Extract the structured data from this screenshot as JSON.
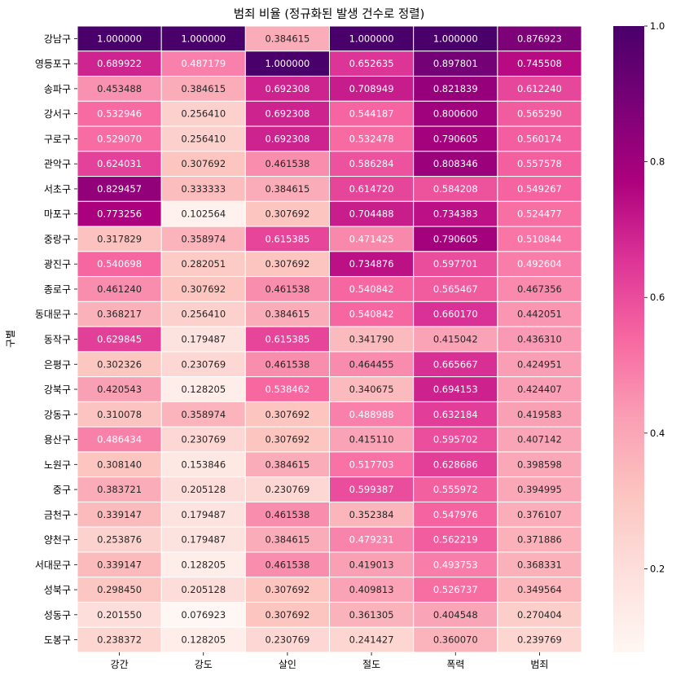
{
  "chart_data": {
    "type": "heatmap",
    "title": "범죄 비율 (정규화된 발생 건수로 정렬)",
    "xlabel": "",
    "ylabel": "구별",
    "columns": [
      "강간",
      "강도",
      "살인",
      "절도",
      "폭력",
      "범죄"
    ],
    "rows": [
      "강남구",
      "영등포구",
      "송파구",
      "강서구",
      "구로구",
      "관악구",
      "서초구",
      "마포구",
      "중랑구",
      "광진구",
      "종로구",
      "동대문구",
      "동작구",
      "은평구",
      "강북구",
      "강동구",
      "용산구",
      "노원구",
      "중구",
      "금천구",
      "양천구",
      "서대문구",
      "성북구",
      "성동구",
      "도봉구"
    ],
    "values": [
      [
        "1.000000",
        "1.000000",
        "0.384615",
        "1.000000",
        "1.000000",
        "0.876923"
      ],
      [
        "0.689922",
        "0.487179",
        "1.000000",
        "0.652635",
        "0.897801",
        "0.745508"
      ],
      [
        "0.453488",
        "0.384615",
        "0.692308",
        "0.708949",
        "0.821839",
        "0.612240"
      ],
      [
        "0.532946",
        "0.256410",
        "0.692308",
        "0.544187",
        "0.800600",
        "0.565290"
      ],
      [
        "0.529070",
        "0.256410",
        "0.692308",
        "0.532478",
        "0.790605",
        "0.560174"
      ],
      [
        "0.624031",
        "0.307692",
        "0.461538",
        "0.586284",
        "0.808346",
        "0.557578"
      ],
      [
        "0.829457",
        "0.333333",
        "0.384615",
        "0.614720",
        "0.584208",
        "0.549267"
      ],
      [
        "0.773256",
        "0.102564",
        "0.307692",
        "0.704488",
        "0.734383",
        "0.524477"
      ],
      [
        "0.317829",
        "0.358974",
        "0.615385",
        "0.471425",
        "0.790605",
        "0.510844"
      ],
      [
        "0.540698",
        "0.282051",
        "0.307692",
        "0.734876",
        "0.597701",
        "0.492604"
      ],
      [
        "0.461240",
        "0.307692",
        "0.461538",
        "0.540842",
        "0.565467",
        "0.467356"
      ],
      [
        "0.368217",
        "0.256410",
        "0.384615",
        "0.540842",
        "0.660170",
        "0.442051"
      ],
      [
        "0.629845",
        "0.179487",
        "0.615385",
        "0.341790",
        "0.415042",
        "0.436310"
      ],
      [
        "0.302326",
        "0.230769",
        "0.461538",
        "0.464455",
        "0.665667",
        "0.424951"
      ],
      [
        "0.420543",
        "0.128205",
        "0.538462",
        "0.340675",
        "0.694153",
        "0.424407"
      ],
      [
        "0.310078",
        "0.358974",
        "0.307692",
        "0.488988",
        "0.632184",
        "0.419583"
      ],
      [
        "0.486434",
        "0.230769",
        "0.307692",
        "0.415110",
        "0.595702",
        "0.407142"
      ],
      [
        "0.308140",
        "0.153846",
        "0.384615",
        "0.517703",
        "0.628686",
        "0.398598"
      ],
      [
        "0.383721",
        "0.205128",
        "0.230769",
        "0.599387",
        "0.555972",
        "0.394995"
      ],
      [
        "0.339147",
        "0.179487",
        "0.461538",
        "0.352384",
        "0.547976",
        "0.376107"
      ],
      [
        "0.253876",
        "0.179487",
        "0.384615",
        "0.479231",
        "0.562219",
        "0.371886"
      ],
      [
        "0.339147",
        "0.128205",
        "0.461538",
        "0.419013",
        "0.493753",
        "0.368331"
      ],
      [
        "0.298450",
        "0.205128",
        "0.307692",
        "0.409813",
        "0.526737",
        "0.349564"
      ],
      [
        "0.201550",
        "0.076923",
        "0.307692",
        "0.361305",
        "0.404548",
        "0.270404"
      ],
      [
        "0.238372",
        "0.128205",
        "0.230769",
        "0.241427",
        "0.360070",
        "0.239769"
      ]
    ],
    "colormap": "RdPu",
    "color_range": [
      0.076923,
      1.0
    ],
    "colorbar_ticks": [
      "0.2",
      "0.4",
      "0.6",
      "0.8",
      "1.0"
    ],
    "annot": true,
    "grid": false,
    "legend_position": "right"
  },
  "colors": {
    "colormap_stops": [
      "#fff7f3",
      "#fde0dd",
      "#fcc5c0",
      "#fa9fb5",
      "#f768a1",
      "#dd3497",
      "#ae017e",
      "#7a0177",
      "#49006a"
    ],
    "text_dark": "#262626",
    "text_light": "#ffffff",
    "cell_border": "#ffffff"
  }
}
